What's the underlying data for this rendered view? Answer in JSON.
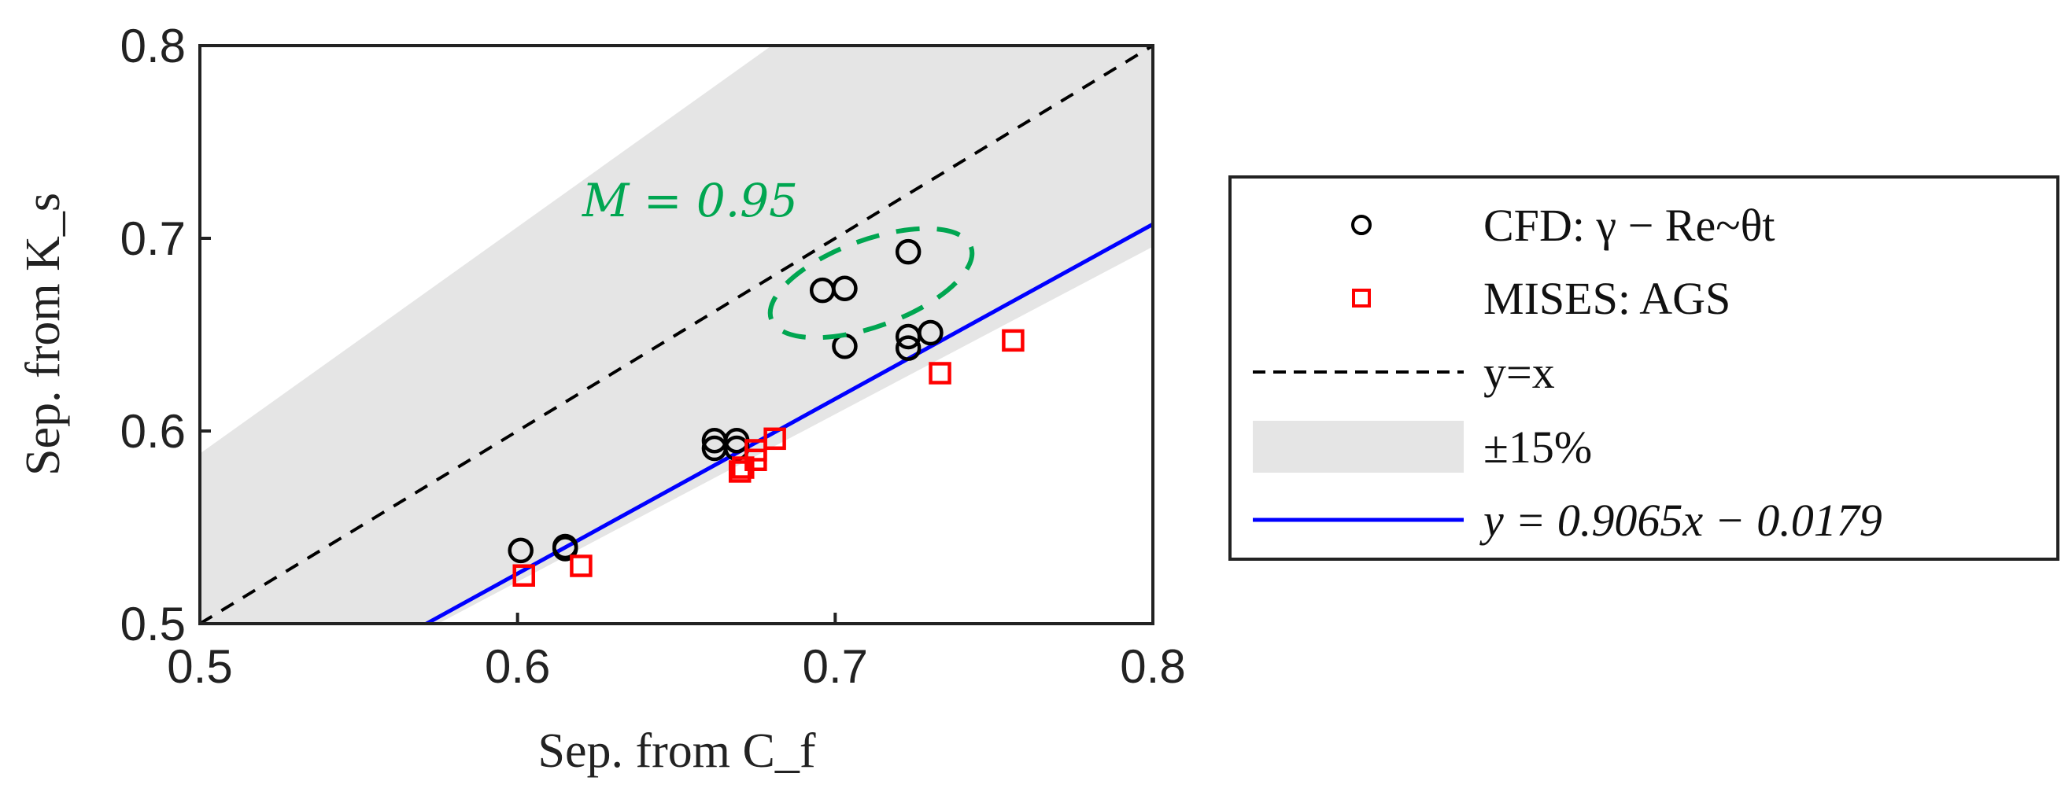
{
  "chart_data": {
    "type": "scatter",
    "xlabel": "Sep. from C_f",
    "ylabel": "Sep. from K_s",
    "xlim": [
      0.5,
      0.8
    ],
    "ylim": [
      0.5,
      0.8
    ],
    "xticks": [
      "0.5",
      "0.6",
      "0.7",
      "0.8"
    ],
    "yticks": [
      "0.5",
      "0.6",
      "0.7",
      "0.8"
    ],
    "grid": false,
    "legend_position": "outside-right",
    "annotation": "M = 0.95",
    "annotation_color": "#00a651",
    "series": [
      {
        "name": "CFD: γ − Re~θt",
        "marker": "circle",
        "color": "#000000",
        "points": [
          [
            0.601,
            0.538
          ],
          [
            0.615,
            0.54
          ],
          [
            0.615,
            0.539
          ],
          [
            0.662,
            0.595
          ],
          [
            0.662,
            0.591
          ],
          [
            0.669,
            0.595
          ],
          [
            0.669,
            0.591
          ],
          [
            0.696,
            0.673
          ],
          [
            0.703,
            0.674
          ],
          [
            0.703,
            0.644
          ],
          [
            0.723,
            0.693
          ],
          [
            0.723,
            0.649
          ],
          [
            0.723,
            0.643
          ],
          [
            0.73,
            0.651
          ]
        ]
      },
      {
        "name": "MISES: AGS",
        "marker": "square",
        "color": "#ff0000",
        "points": [
          [
            0.602,
            0.525
          ],
          [
            0.62,
            0.53
          ],
          [
            0.67,
            0.579
          ],
          [
            0.671,
            0.581
          ],
          [
            0.675,
            0.585
          ],
          [
            0.675,
            0.59
          ],
          [
            0.681,
            0.596
          ],
          [
            0.733,
            0.63
          ],
          [
            0.756,
            0.647
          ]
        ]
      },
      {
        "name": "y=x",
        "type": "line",
        "style": "dashed",
        "color": "#000000",
        "slope": 1,
        "intercept": 0
      },
      {
        "name": "±15%",
        "type": "band",
        "color": "#e5e5e5",
        "upper_factor": 1.1765,
        "lower_factor": 0.8696
      },
      {
        "name": "y = 0.9065x − 0.0179",
        "type": "line",
        "style": "solid",
        "color": "#0000ff",
        "slope": 0.9065,
        "intercept": -0.0179
      }
    ]
  }
}
